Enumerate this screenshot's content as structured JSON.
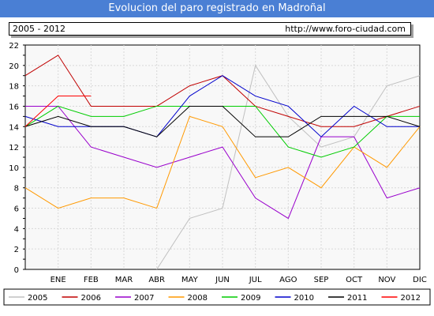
{
  "header": {
    "title": "Evolucion del paro registrado en Madroñal",
    "range_label": "2005 - 2012",
    "url_label": "http://www.foro-ciudad.com"
  },
  "chart_data": {
    "type": "line",
    "title": "Evolucion del paro registrado en Madroñal",
    "categories": [
      "",
      "ENE",
      "FEB",
      "MAR",
      "ABR",
      "MAY",
      "JUN",
      "JUL",
      "AGO",
      "SEP",
      "OCT",
      "NOV",
      "DIC"
    ],
    "ylim": [
      0,
      22
    ],
    "yticks": [
      0,
      2,
      4,
      6,
      8,
      10,
      12,
      14,
      16,
      18,
      20,
      22
    ],
    "grid": true,
    "legend_position": "bottom",
    "series": [
      {
        "name": "2005",
        "color": "#c0c0c0",
        "values": [
          null,
          null,
          null,
          null,
          0,
          5,
          6,
          20,
          15,
          12,
          13,
          18,
          19
        ]
      },
      {
        "name": "2006",
        "color": "#c00000",
        "values": [
          19,
          21,
          16,
          16,
          16,
          18,
          19,
          16,
          15,
          14,
          14,
          15,
          16
        ]
      },
      {
        "name": "2007",
        "color": "#9900cc",
        "values": [
          16,
          16,
          12,
          11,
          10,
          11,
          12,
          7,
          5,
          13,
          13,
          7,
          8
        ]
      },
      {
        "name": "2008",
        "color": "#ff9900",
        "values": [
          8,
          6,
          7,
          7,
          6,
          15,
          14,
          9,
          10,
          8,
          12,
          10,
          14
        ]
      },
      {
        "name": "2009",
        "color": "#00cc00",
        "values": [
          14,
          16,
          15,
          15,
          16,
          16,
          16,
          16,
          12,
          11,
          12,
          15,
          15
        ]
      },
      {
        "name": "2010",
        "color": "#0000cc",
        "values": [
          15,
          14,
          14,
          14,
          13,
          17,
          19,
          17,
          16,
          13,
          16,
          14,
          14
        ]
      },
      {
        "name": "2011",
        "color": "#000000",
        "values": [
          14,
          15,
          14,
          14,
          13,
          16,
          16,
          13,
          13,
          15,
          15,
          15,
          14
        ]
      },
      {
        "name": "2012",
        "color": "#ff0000",
        "values": [
          14,
          17,
          17,
          null,
          null,
          null,
          null,
          null,
          null,
          null,
          null,
          null,
          null
        ]
      }
    ]
  }
}
